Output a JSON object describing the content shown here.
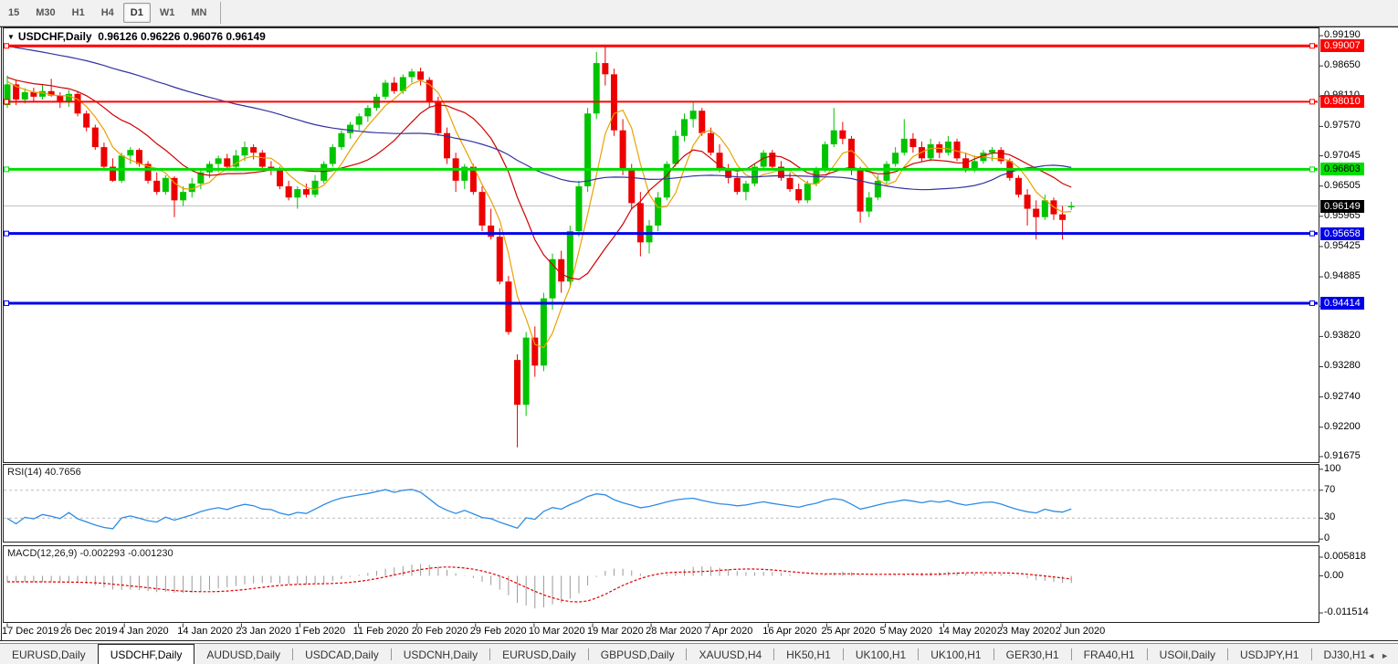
{
  "toolbar": {
    "timeframes": [
      "15",
      "M30",
      "H1",
      "H4",
      "D1",
      "W1",
      "MN"
    ],
    "active_timeframe": "D1"
  },
  "chart": {
    "title_symbol": "USDCHF,Daily",
    "title_ohlc": "0.96126 0.96226 0.96076 0.96149",
    "dropdown_icon": "▼"
  },
  "chart_data": {
    "type": "candlestick",
    "symbol": "USDCHF",
    "period": "Daily",
    "current_bar": {
      "open": 0.96126,
      "high": 0.96226,
      "low": 0.96076,
      "close": 0.96149
    },
    "colors": {
      "bull": "#00C400",
      "bear": "#ED0000",
      "background": "#FFFFFF",
      "pane_border": "#222222"
    },
    "candles": [
      [
        0.9795,
        0.9848,
        0.979,
        0.9832
      ],
      [
        0.9832,
        0.984,
        0.9795,
        0.9805
      ],
      [
        0.9805,
        0.9825,
        0.9798,
        0.9818
      ],
      [
        0.9818,
        0.9826,
        0.9802,
        0.981
      ],
      [
        0.981,
        0.9833,
        0.9805,
        0.982
      ],
      [
        0.982,
        0.9842,
        0.981,
        0.9812
      ],
      [
        0.9812,
        0.9818,
        0.979,
        0.98
      ],
      [
        0.98,
        0.9822,
        0.9792,
        0.9815
      ],
      [
        0.9815,
        0.982,
        0.9775,
        0.978
      ],
      [
        0.978,
        0.9785,
        0.9748,
        0.9755
      ],
      [
        0.9755,
        0.976,
        0.9715,
        0.972
      ],
      [
        0.972,
        0.9728,
        0.9682,
        0.9685
      ],
      [
        0.9685,
        0.97,
        0.9658,
        0.966
      ],
      [
        0.966,
        0.971,
        0.9656,
        0.9705
      ],
      [
        0.9705,
        0.972,
        0.969,
        0.9715
      ],
      [
        0.9715,
        0.9718,
        0.9685,
        0.969
      ],
      [
        0.969,
        0.9695,
        0.9655,
        0.966
      ],
      [
        0.966,
        0.9675,
        0.9635,
        0.964
      ],
      [
        0.964,
        0.967,
        0.9635,
        0.9665
      ],
      [
        0.9665,
        0.9668,
        0.9595,
        0.9625
      ],
      [
        0.9625,
        0.965,
        0.9615,
        0.964
      ],
      [
        0.964,
        0.9665,
        0.963,
        0.9655
      ],
      [
        0.9655,
        0.968,
        0.9645,
        0.9675
      ],
      [
        0.9675,
        0.9695,
        0.9665,
        0.969
      ],
      [
        0.969,
        0.9705,
        0.9675,
        0.97
      ],
      [
        0.97,
        0.9708,
        0.968,
        0.9685
      ],
      [
        0.9685,
        0.9715,
        0.9678,
        0.9705
      ],
      [
        0.9705,
        0.973,
        0.9695,
        0.972
      ],
      [
        0.972,
        0.9725,
        0.9698,
        0.971
      ],
      [
        0.971,
        0.9715,
        0.968,
        0.9685
      ],
      [
        0.9685,
        0.9695,
        0.967,
        0.968
      ],
      [
        0.968,
        0.9685,
        0.9645,
        0.965
      ],
      [
        0.965,
        0.966,
        0.9625,
        0.963
      ],
      [
        0.963,
        0.965,
        0.961,
        0.9645
      ],
      [
        0.9645,
        0.9655,
        0.963,
        0.9635
      ],
      [
        0.9635,
        0.967,
        0.963,
        0.966
      ],
      [
        0.966,
        0.9695,
        0.9655,
        0.969
      ],
      [
        0.969,
        0.9725,
        0.9685,
        0.972
      ],
      [
        0.972,
        0.975,
        0.9715,
        0.9745
      ],
      [
        0.9745,
        0.9765,
        0.9735,
        0.976
      ],
      [
        0.976,
        0.978,
        0.975,
        0.9775
      ],
      [
        0.9775,
        0.9795,
        0.9765,
        0.979
      ],
      [
        0.979,
        0.9815,
        0.9785,
        0.981
      ],
      [
        0.981,
        0.984,
        0.9805,
        0.9835
      ],
      [
        0.9835,
        0.9845,
        0.9815,
        0.982
      ],
      [
        0.982,
        0.985,
        0.9815,
        0.9845
      ],
      [
        0.9845,
        0.986,
        0.9835,
        0.9855
      ],
      [
        0.9855,
        0.9862,
        0.983,
        0.984
      ],
      [
        0.984,
        0.9845,
        0.979,
        0.98
      ],
      [
        0.98,
        0.981,
        0.974,
        0.9745
      ],
      [
        0.9745,
        0.9755,
        0.969,
        0.97
      ],
      [
        0.97,
        0.971,
        0.964,
        0.966
      ],
      [
        0.966,
        0.969,
        0.9645,
        0.9685
      ],
      [
        0.9685,
        0.969,
        0.9635,
        0.964
      ],
      [
        0.964,
        0.965,
        0.957,
        0.958
      ],
      [
        0.958,
        0.961,
        0.9555,
        0.956
      ],
      [
        0.956,
        0.9575,
        0.9475,
        0.948
      ],
      [
        0.948,
        0.949,
        0.9385,
        0.939
      ],
      [
        0.934,
        0.935,
        0.9184,
        0.926
      ],
      [
        0.926,
        0.939,
        0.924,
        0.938
      ],
      [
        0.938,
        0.94,
        0.931,
        0.933
      ],
      [
        0.933,
        0.946,
        0.932,
        0.945
      ],
      [
        0.945,
        0.953,
        0.943,
        0.952
      ],
      [
        0.952,
        0.9535,
        0.946,
        0.948
      ],
      [
        0.948,
        0.958,
        0.947,
        0.957
      ],
      [
        0.957,
        0.966,
        0.956,
        0.965
      ],
      [
        0.965,
        0.979,
        0.964,
        0.978
      ],
      [
        0.978,
        0.989,
        0.977,
        0.987
      ],
      [
        0.987,
        0.9901,
        0.983,
        0.985
      ],
      [
        0.985,
        0.986,
        0.974,
        0.975
      ],
      [
        0.975,
        0.977,
        0.967,
        0.968
      ],
      [
        0.968,
        0.969,
        0.961,
        0.962
      ],
      [
        0.962,
        0.964,
        0.9525,
        0.955
      ],
      [
        0.955,
        0.959,
        0.953,
        0.958
      ],
      [
        0.958,
        0.964,
        0.957,
        0.963
      ],
      [
        0.963,
        0.9695,
        0.9625,
        0.969
      ],
      [
        0.969,
        0.975,
        0.9685,
        0.974
      ],
      [
        0.974,
        0.978,
        0.973,
        0.977
      ],
      [
        0.977,
        0.98,
        0.9755,
        0.9785
      ],
      [
        0.9785,
        0.979,
        0.974,
        0.9745
      ],
      [
        0.9745,
        0.9755,
        0.9705,
        0.971
      ],
      [
        0.971,
        0.9725,
        0.9675,
        0.968
      ],
      [
        0.968,
        0.969,
        0.9655,
        0.9665
      ],
      [
        0.9665,
        0.9675,
        0.9635,
        0.964
      ],
      [
        0.964,
        0.966,
        0.9625,
        0.9655
      ],
      [
        0.9655,
        0.969,
        0.965,
        0.9685
      ],
      [
        0.9685,
        0.9715,
        0.968,
        0.971
      ],
      [
        0.971,
        0.9715,
        0.968,
        0.9685
      ],
      [
        0.9685,
        0.9695,
        0.966,
        0.9665
      ],
      [
        0.9665,
        0.9675,
        0.964,
        0.9645
      ],
      [
        0.9645,
        0.9655,
        0.962,
        0.9625
      ],
      [
        0.9625,
        0.966,
        0.962,
        0.9655
      ],
      [
        0.9655,
        0.9685,
        0.965,
        0.968
      ],
      [
        0.968,
        0.973,
        0.9675,
        0.9725
      ],
      [
        0.9725,
        0.979,
        0.972,
        0.975
      ],
      [
        0.975,
        0.9765,
        0.9725,
        0.9735
      ],
      [
        0.9735,
        0.974,
        0.967,
        0.968
      ],
      [
        0.968,
        0.9685,
        0.9585,
        0.9605
      ],
      [
        0.9605,
        0.964,
        0.9595,
        0.963
      ],
      [
        0.963,
        0.967,
        0.9625,
        0.966
      ],
      [
        0.966,
        0.9695,
        0.9655,
        0.969
      ],
      [
        0.969,
        0.972,
        0.9685,
        0.971
      ],
      [
        0.971,
        0.977,
        0.9705,
        0.9735
      ],
      [
        0.9735,
        0.9745,
        0.971,
        0.972
      ],
      [
        0.972,
        0.973,
        0.9695,
        0.97
      ],
      [
        0.97,
        0.9735,
        0.9695,
        0.9725
      ],
      [
        0.9725,
        0.973,
        0.97,
        0.971
      ],
      [
        0.971,
        0.974,
        0.9705,
        0.973
      ],
      [
        0.973,
        0.9735,
        0.9695,
        0.97
      ],
      [
        0.97,
        0.971,
        0.9675,
        0.968
      ],
      [
        0.968,
        0.9705,
        0.9675,
        0.9695
      ],
      [
        0.9695,
        0.9715,
        0.969,
        0.971
      ],
      [
        0.971,
        0.972,
        0.9695,
        0.9715
      ],
      [
        0.9715,
        0.972,
        0.969,
        0.9695
      ],
      [
        0.9695,
        0.97,
        0.966,
        0.9665
      ],
      [
        0.9665,
        0.967,
        0.963,
        0.9635
      ],
      [
        0.9635,
        0.9645,
        0.958,
        0.961
      ],
      [
        0.961,
        0.9625,
        0.9555,
        0.9595
      ],
      [
        0.9595,
        0.9635,
        0.959,
        0.9625
      ],
      [
        0.9625,
        0.963,
        0.959,
        0.96
      ],
      [
        0.96,
        0.9615,
        0.9555,
        0.959
      ],
      [
        0.96126,
        0.96226,
        0.96076,
        0.96149
      ]
    ],
    "warmup_prehistory": {
      "start_close": 0.999,
      "end_close": 0.983,
      "bars": 60
    },
    "moving_averages": [
      {
        "name": "fast-ma",
        "period": 5,
        "color": "#E8A200"
      },
      {
        "name": "medium-ma",
        "period": 13,
        "color": "#D00000"
      },
      {
        "name": "slow-ma",
        "period": 55,
        "color": "#3333A0"
      }
    ],
    "hlines": [
      {
        "price": 0.99007,
        "label": "0.99007",
        "color": "#FF0000",
        "width": 3,
        "text_color": "#FFFFFF"
      },
      {
        "price": 0.9801,
        "label": "0.98010",
        "color": "#FF0000",
        "width": 2,
        "text_color": "#FFFFFF"
      },
      {
        "price": 0.96803,
        "label": "0.96803",
        "color": "#00DD00",
        "width": 3,
        "text_color": "#000000"
      },
      {
        "price": 0.95658,
        "label": "0.95658",
        "color": "#0000E8",
        "width": 3,
        "text_color": "#FFFFFF"
      },
      {
        "price": 0.94414,
        "label": "0.94414",
        "color": "#0000E8",
        "width": 3,
        "text_color": "#FFFFFF"
      }
    ],
    "current_price": {
      "value": 0.96149,
      "label": "0.96149",
      "line_color": "#C0C0C0",
      "badge_bg": "#000000",
      "badge_fg": "#FFFFFF"
    },
    "price_axis_labels": [
      "0.99190",
      "0.98650",
      "0.98110",
      "0.97570",
      "0.97045",
      "0.96505",
      "0.95965",
      "0.95425",
      "0.94885",
      "0.94360",
      "0.93820",
      "0.93280",
      "0.92740",
      "0.92200",
      "0.91675"
    ],
    "date_axis_labels": [
      "17 Dec 2019",
      "26 Dec 2019",
      "4 Jan 2020",
      "14 Jan 2020",
      "23 Jan 2020",
      "1 Feb 2020",
      "11 Feb 2020",
      "20 Feb 2020",
      "29 Feb 2020",
      "10 Mar 2020",
      "19 Mar 2020",
      "28 Mar 2020",
      "7 Apr 2020",
      "16 Apr 2020",
      "25 Apr 2020",
      "5 May 2020",
      "14 May 2020",
      "23 May 2020",
      "2 Jun 2020"
    ],
    "rsi": {
      "label": "RSI(14) 40.7656",
      "period": 14,
      "value": 40.7656,
      "axis_labels": [
        "100",
        "70",
        "30",
        "0"
      ],
      "levels": [
        70,
        30
      ],
      "line_color": "#2E8BE6",
      "level_color": "#BBBBBB"
    },
    "macd": {
      "label": "MACD(12,26,9) -0.002293 -0.001230",
      "fast": 12,
      "slow": 26,
      "signal": 9,
      "main_value": -0.002293,
      "signal_value": -0.00123,
      "axis_labels": [
        "0.005818",
        "0.00",
        "-0.011514"
      ],
      "axis_values": [
        0.005818,
        0.0,
        -0.011514
      ],
      "hist_color": "#9A9A9A",
      "signal_color": "#E00000"
    }
  },
  "tabs": {
    "items": [
      "EURUSD,Daily",
      "USDCHF,Daily",
      "AUDUSD,Daily",
      "USDCAD,Daily",
      "USDCNH,Daily",
      "EURUSD,Daily",
      "GBPUSD,Daily",
      "XAUUSD,H4",
      "HK50,H1",
      "UK100,H1",
      "UK100,H1",
      "GER30,H1",
      "FRA40,H1",
      "USOil,Daily",
      "USDJPY,H1",
      "DJ30,H1"
    ],
    "active_index": 1,
    "scroll_left_icon": "◄",
    "scroll_right_icon": "►"
  }
}
